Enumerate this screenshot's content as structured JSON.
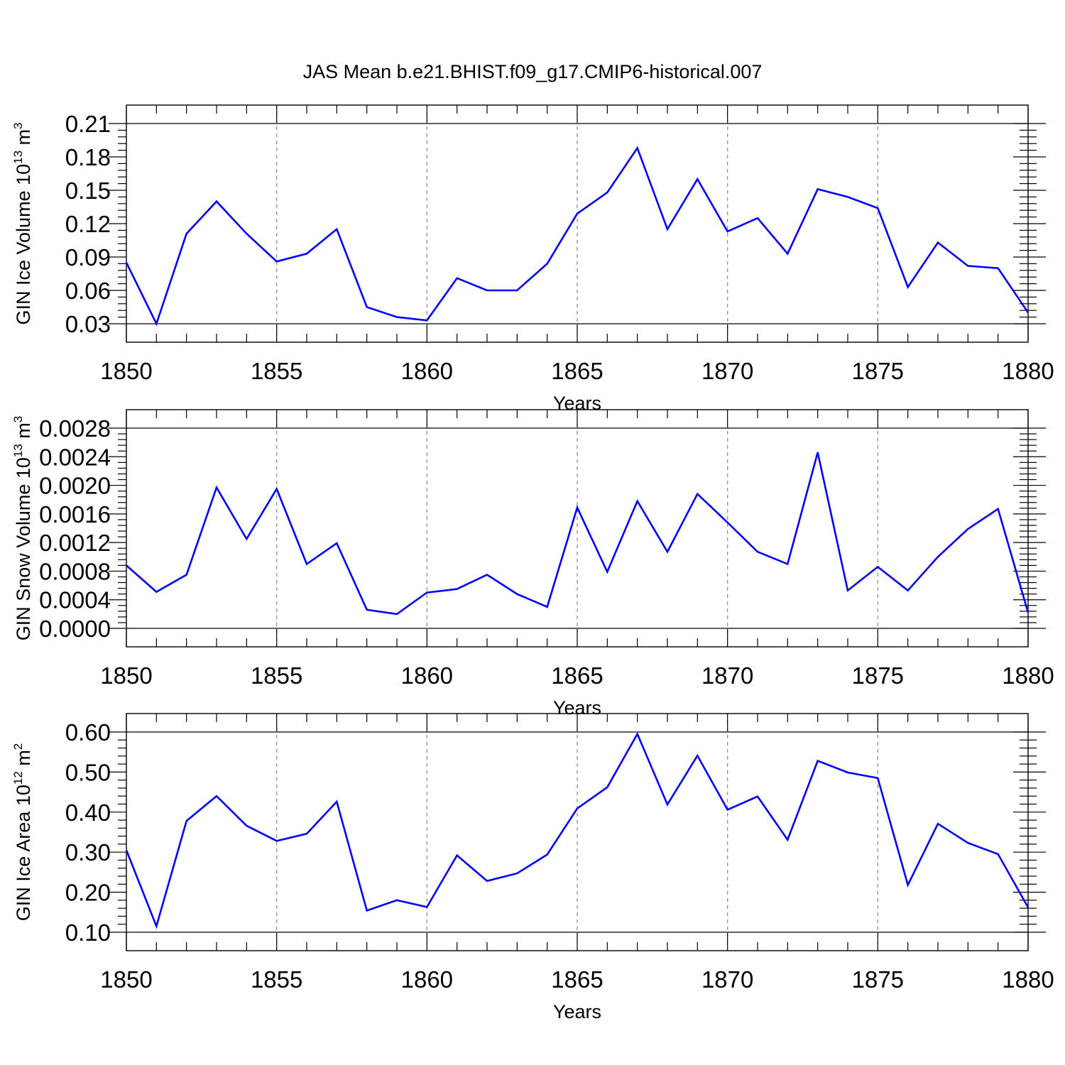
{
  "figure_title": "JAS Mean b.e21.BHIST.f09_g17.CMIP6-historical.007",
  "colors": {
    "series": "#0000ff",
    "grid": "#888888",
    "axis": "#000000"
  },
  "chart_data": [
    {
      "type": "line",
      "title": "JAS Mean b.e21.BHIST.f09_g17.CMIP6-historical.007",
      "xlabel": "Years",
      "ylabel": "GIN Ice Volume 10^13 m^3",
      "ylabel_parts": {
        "base": "GIN Ice Volume 10",
        "sup1": "13",
        "mid": " m",
        "sup2": "3"
      },
      "xlim": [
        1850,
        1880
      ],
      "ylim": [
        0.03,
        0.21
      ],
      "xticks": [
        1850,
        1855,
        1860,
        1865,
        1870,
        1875,
        1880
      ],
      "yticks": [
        0.03,
        0.06,
        0.09,
        0.12,
        0.15,
        0.18,
        0.21
      ],
      "ytick_labels": [
        "0.03",
        "0.06",
        "0.09",
        "0.12",
        "0.15",
        "0.18",
        "0.21"
      ],
      "grid": "vertical dashed at major x ticks",
      "x": [
        1850,
        1851,
        1852,
        1853,
        1854,
        1855,
        1856,
        1857,
        1858,
        1859,
        1860,
        1861,
        1862,
        1863,
        1864,
        1865,
        1866,
        1867,
        1868,
        1869,
        1870,
        1871,
        1872,
        1873,
        1874,
        1875,
        1876,
        1877,
        1878,
        1879,
        1880
      ],
      "series": [
        {
          "values": [
            0.085,
            0.03,
            0.111,
            0.14,
            0.111,
            0.086,
            0.093,
            0.115,
            0.045,
            0.036,
            0.033,
            0.071,
            0.06,
            0.06,
            0.084,
            0.129,
            0.148,
            0.188,
            0.115,
            0.16,
            0.113,
            0.125,
            0.093,
            0.151,
            0.144,
            0.134,
            0.063,
            0.103,
            0.082,
            0.08,
            0.04
          ]
        }
      ]
    },
    {
      "type": "line",
      "xlabel": "Years",
      "ylabel": "GIN Snow Volume 10^13 m^3",
      "ylabel_parts": {
        "base": "GIN Snow Volume 10",
        "sup1": "13",
        "mid": " m",
        "sup2": "3"
      },
      "xlim": [
        1850,
        1880
      ],
      "ylim": [
        0.0,
        0.0028
      ],
      "xticks": [
        1850,
        1855,
        1860,
        1865,
        1870,
        1875,
        1880
      ],
      "yticks": [
        0.0,
        0.0004,
        0.0008,
        0.0012,
        0.0016,
        0.002,
        0.0024,
        0.0028
      ],
      "ytick_labels": [
        "0.0000",
        "0.0004",
        "0.0008",
        "0.0012",
        "0.0016",
        "0.0020",
        "0.0024",
        "0.0028"
      ],
      "grid": "vertical dashed at major x ticks",
      "x": [
        1850,
        1851,
        1852,
        1853,
        1854,
        1855,
        1856,
        1857,
        1858,
        1859,
        1860,
        1861,
        1862,
        1863,
        1864,
        1865,
        1866,
        1867,
        1868,
        1869,
        1870,
        1871,
        1872,
        1873,
        1874,
        1875,
        1876,
        1877,
        1878,
        1879,
        1880
      ],
      "series": [
        {
          "values": [
            0.00088,
            0.00051,
            0.00075,
            0.00197,
            0.00125,
            0.00195,
            0.0009,
            0.00119,
            0.00026,
            0.0002,
            0.0005,
            0.00055,
            0.00075,
            0.00048,
            0.0003,
            0.00169,
            0.00079,
            0.00178,
            0.00107,
            0.00188,
            0.00148,
            0.00107,
            0.0009,
            0.00246,
            0.00053,
            0.00086,
            0.00053,
            0.001,
            0.00139,
            0.00167,
            0.00022
          ]
        }
      ]
    },
    {
      "type": "line",
      "xlabel": "Years",
      "ylabel": "GIN Ice Area 10^12 m^2",
      "ylabel_parts": {
        "base": "GIN Ice Area 10",
        "sup1": "12",
        "mid": " m",
        "sup2": "2"
      },
      "xlim": [
        1850,
        1880
      ],
      "ylim": [
        0.1,
        0.6
      ],
      "xticks": [
        1850,
        1855,
        1860,
        1865,
        1870,
        1875,
        1880
      ],
      "yticks": [
        0.1,
        0.2,
        0.3,
        0.4,
        0.5,
        0.6
      ],
      "ytick_labels": [
        "0.10",
        "0.20",
        "0.30",
        "0.40",
        "0.50",
        "0.60"
      ],
      "grid": "vertical dashed at major x ticks",
      "x": [
        1850,
        1851,
        1852,
        1853,
        1854,
        1855,
        1856,
        1857,
        1858,
        1859,
        1860,
        1861,
        1862,
        1863,
        1864,
        1865,
        1866,
        1867,
        1868,
        1869,
        1870,
        1871,
        1872,
        1873,
        1874,
        1875,
        1876,
        1877,
        1878,
        1879,
        1880
      ],
      "series": [
        {
          "values": [
            0.305,
            0.115,
            0.378,
            0.44,
            0.366,
            0.328,
            0.346,
            0.426,
            0.154,
            0.18,
            0.163,
            0.292,
            0.228,
            0.247,
            0.294,
            0.409,
            0.462,
            0.595,
            0.419,
            0.541,
            0.406,
            0.439,
            0.331,
            0.528,
            0.499,
            0.485,
            0.218,
            0.371,
            0.323,
            0.295,
            0.162
          ]
        }
      ]
    }
  ]
}
